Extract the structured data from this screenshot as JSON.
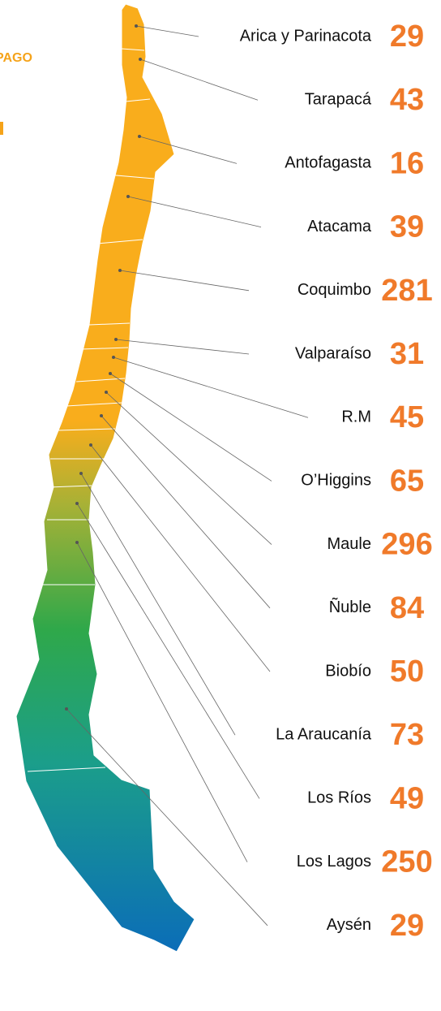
{
  "header": {
    "title_fragment": "PAGO"
  },
  "regions": [
    {
      "name": "Arica y Parinacota",
      "value": 29
    },
    {
      "name": "Tarapacá",
      "value": 43
    },
    {
      "name": "Antofagasta",
      "value": 16
    },
    {
      "name": "Atacama",
      "value": 39
    },
    {
      "name": "Coquimbo",
      "value": 281
    },
    {
      "name": "Valparaíso",
      "value": 31
    },
    {
      "name": "R.M",
      "value": 45
    },
    {
      "name": "O’Higgins",
      "value": 65
    },
    {
      "name": "Maule",
      "value": 296
    },
    {
      "name": "Ñuble",
      "value": 84
    },
    {
      "name": "Biobío",
      "value": 50
    },
    {
      "name": "La Araucanía",
      "value": 73
    },
    {
      "name": "Los Ríos",
      "value": 49
    },
    {
      "name": "Los Lagos",
      "value": 250
    },
    {
      "name": "Aysén",
      "value": 29
    }
  ]
}
